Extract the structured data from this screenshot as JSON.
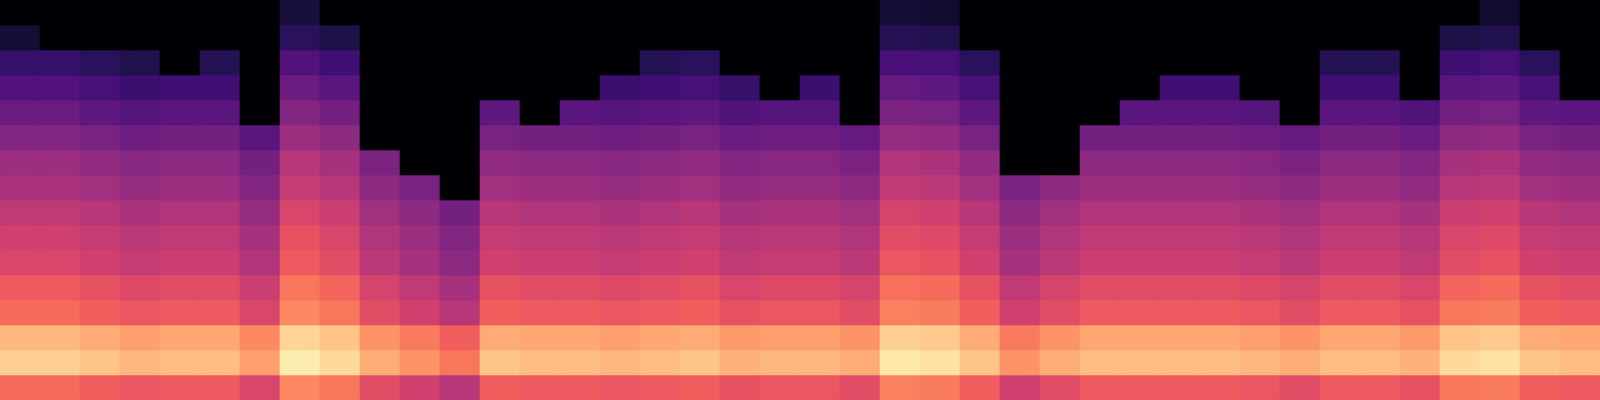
{
  "chart_data": {
    "type": "heatmap",
    "color": "magma",
    "tick_labels": false,
    "zlim": [
      -80,
      0
    ],
    "cells": [
      [
        -25,
        -8,
        -12,
        -25,
        -28,
        -33,
        -35,
        -38,
        -42,
        -45,
        -50,
        -55,
        -60,
        -65,
        -72,
        -80
      ],
      [
        -25,
        -8,
        -12,
        -25,
        -28,
        -33,
        -35,
        -38,
        -42,
        -45,
        -50,
        -55,
        -60,
        -65,
        -80,
        -80
      ],
      [
        -27,
        -10,
        -14,
        -27,
        -30,
        -35,
        -37,
        -40,
        -44,
        -47,
        -52,
        -57,
        -62,
        -67,
        -80,
        -80
      ],
      [
        -29,
        -12,
        -16,
        -29,
        -32,
        -37,
        -39,
        -42,
        -46,
        -49,
        -54,
        -59,
        -64,
        -69,
        -80,
        -80
      ],
      [
        -28,
        -11,
        -15,
        -28,
        -31,
        -36,
        -38,
        -41,
        -45,
        -48,
        -53,
        -58,
        -63,
        -80,
        -80,
        -80
      ],
      [
        -28,
        -11,
        -15,
        -28,
        -31,
        -36,
        -38,
        -41,
        -45,
        -48,
        -53,
        -58,
        -63,
        -68,
        -80,
        -80
      ],
      [
        -33,
        -16,
        -20,
        -33,
        -36,
        -41,
        -43,
        -46,
        -50,
        -53,
        -58,
        -80,
        -80,
        -80,
        -80,
        -80
      ],
      [
        -20,
        -3,
        -7,
        -20,
        -23,
        -28,
        -30,
        -33,
        -37,
        -40,
        -45,
        -50,
        -55,
        -60,
        -67,
        -71
      ],
      [
        -23,
        -6,
        -10,
        -23,
        -26,
        -31,
        -33,
        -36,
        -40,
        -43,
        -48,
        -53,
        -58,
        -63,
        -70,
        -80
      ],
      [
        -31,
        -14,
        -18,
        -31,
        -34,
        -39,
        -41,
        -44,
        -48,
        -51,
        -80,
        -80,
        -80,
        -80,
        -80,
        -80
      ],
      [
        -35,
        -18,
        -22,
        -35,
        -38,
        -43,
        -45,
        -48,
        -52,
        -80,
        -80,
        -80,
        -80,
        -80,
        -80,
        -80
      ],
      [
        -40,
        -23,
        -27,
        -40,
        -43,
        -48,
        -50,
        -53,
        -80,
        -80,
        -80,
        -80,
        -80,
        -80,
        -80,
        -80
      ],
      [
        -27,
        -10,
        -14,
        -27,
        -30,
        -35,
        -37,
        -40,
        -44,
        -47,
        -52,
        -57,
        -80,
        -80,
        -80,
        -80
      ],
      [
        -28,
        -11,
        -15,
        -28,
        -31,
        -36,
        -38,
        -41,
        -45,
        -48,
        -53,
        -80,
        -80,
        -80,
        -80,
        -80
      ],
      [
        -28,
        -11,
        -15,
        -28,
        -31,
        -36,
        -38,
        -41,
        -45,
        -48,
        -53,
        -58,
        -80,
        -80,
        -80,
        -80
      ],
      [
        -29,
        -12,
        -16,
        -29,
        -32,
        -37,
        -39,
        -42,
        -46,
        -49,
        -54,
        -59,
        -64,
        -80,
        -80,
        -80
      ],
      [
        -28,
        -11,
        -15,
        -28,
        -31,
        -36,
        -38,
        -41,
        -45,
        -48,
        -53,
        -58,
        -63,
        -68,
        -80,
        -80
      ],
      [
        -27,
        -10,
        -14,
        -27,
        -30,
        -35,
        -37,
        -40,
        -44,
        -47,
        -52,
        -57,
        -62,
        -67,
        -80,
        -80
      ],
      [
        -30,
        -13,
        -17,
        -30,
        -33,
        -38,
        -40,
        -43,
        -47,
        -50,
        -55,
        -60,
        -65,
        -80,
        -80,
        -80
      ],
      [
        -29,
        -12,
        -16,
        -29,
        -32,
        -37,
        -39,
        -42,
        -46,
        -49,
        -54,
        -59,
        -80,
        -80,
        -80,
        -80
      ],
      [
        -29,
        -12,
        -16,
        -29,
        -32,
        -37,
        -39,
        -42,
        -46,
        -49,
        -54,
        -59,
        -64,
        -80,
        -80,
        -80
      ],
      [
        -31,
        -14,
        -18,
        -31,
        -34,
        -39,
        -41,
        -44,
        -48,
        -51,
        -56,
        -80,
        -80,
        -80,
        -80,
        -80
      ],
      [
        -21,
        -4,
        -8,
        -21,
        -24,
        -29,
        -31,
        -34,
        -38,
        -41,
        -46,
        -51,
        -56,
        -61,
        -68,
        -72
      ],
      [
        -22,
        -5,
        -9,
        -22,
        -25,
        -30,
        -32,
        -35,
        -39,
        -42,
        -47,
        -52,
        -57,
        -62,
        -69,
        -73
      ],
      [
        -27,
        -10,
        -14,
        -27,
        -30,
        -35,
        -37,
        -40,
        -44,
        -47,
        -52,
        -57,
        -62,
        -67,
        -80,
        -80
      ],
      [
        -35,
        -18,
        -22,
        -35,
        -38,
        -43,
        -45,
        -48,
        -52,
        -80,
        -80,
        -80,
        -80,
        -80,
        -80,
        -80
      ],
      [
        -31,
        -14,
        -18,
        -31,
        -34,
        -39,
        -41,
        -44,
        -48,
        -80,
        -80,
        -80,
        -80,
        -80,
        -80,
        -80
      ],
      [
        -28,
        -11,
        -15,
        -28,
        -31,
        -36,
        -38,
        -41,
        -45,
        -48,
        -53,
        -80,
        -80,
        -80,
        -80,
        -80
      ],
      [
        -28,
        -11,
        -15,
        -28,
        -31,
        -36,
        -38,
        -41,
        -45,
        -48,
        -53,
        -58,
        -80,
        -80,
        -80,
        -80
      ],
      [
        -28,
        -11,
        -15,
        -28,
        -31,
        -36,
        -38,
        -41,
        -45,
        -48,
        -53,
        -58,
        -63,
        -80,
        -80,
        -80
      ],
      [
        -28,
        -11,
        -15,
        -28,
        -31,
        -36,
        -38,
        -41,
        -45,
        -48,
        -53,
        -58,
        -63,
        -80,
        -80,
        -80
      ],
      [
        -29,
        -12,
        -16,
        -29,
        -32,
        -37,
        -39,
        -42,
        -46,
        -49,
        -54,
        -59,
        -80,
        -80,
        -80,
        -80
      ],
      [
        -31,
        -14,
        -18,
        -31,
        -34,
        -39,
        -41,
        -44,
        -48,
        -51,
        -56,
        -80,
        -80,
        -80,
        -80,
        -80
      ],
      [
        -28,
        -11,
        -15,
        -28,
        -31,
        -36,
        -38,
        -41,
        -45,
        -48,
        -53,
        -58,
        -63,
        -68,
        -80,
        -80
      ],
      [
        -28,
        -11,
        -15,
        -28,
        -31,
        -36,
        -38,
        -41,
        -45,
        -48,
        -53,
        -58,
        -63,
        -68,
        -80,
        -80
      ],
      [
        -30,
        -13,
        -17,
        -30,
        -33,
        -38,
        -40,
        -43,
        -47,
        -50,
        -55,
        -60,
        -80,
        -80,
        -80,
        -80
      ],
      [
        -23,
        -6,
        -10,
        -23,
        -26,
        -31,
        -33,
        -36,
        -40,
        -43,
        -48,
        -53,
        -58,
        -63,
        -70,
        -80
      ],
      [
        -22,
        -5,
        -9,
        -22,
        -25,
        -30,
        -32,
        -35,
        -39,
        -42,
        -47,
        -52,
        -57,
        -62,
        -69,
        -73
      ],
      [
        -27,
        -10,
        -14,
        -27,
        -30,
        -35,
        -37,
        -40,
        -44,
        -47,
        -52,
        -57,
        -62,
        -67,
        -80,
        -80
      ],
      [
        -28,
        -11,
        -15,
        -28,
        -31,
        -36,
        -38,
        -41,
        -45,
        -48,
        -53,
        -58,
        -80,
        -80,
        -80,
        -80
      ]
    ]
  }
}
